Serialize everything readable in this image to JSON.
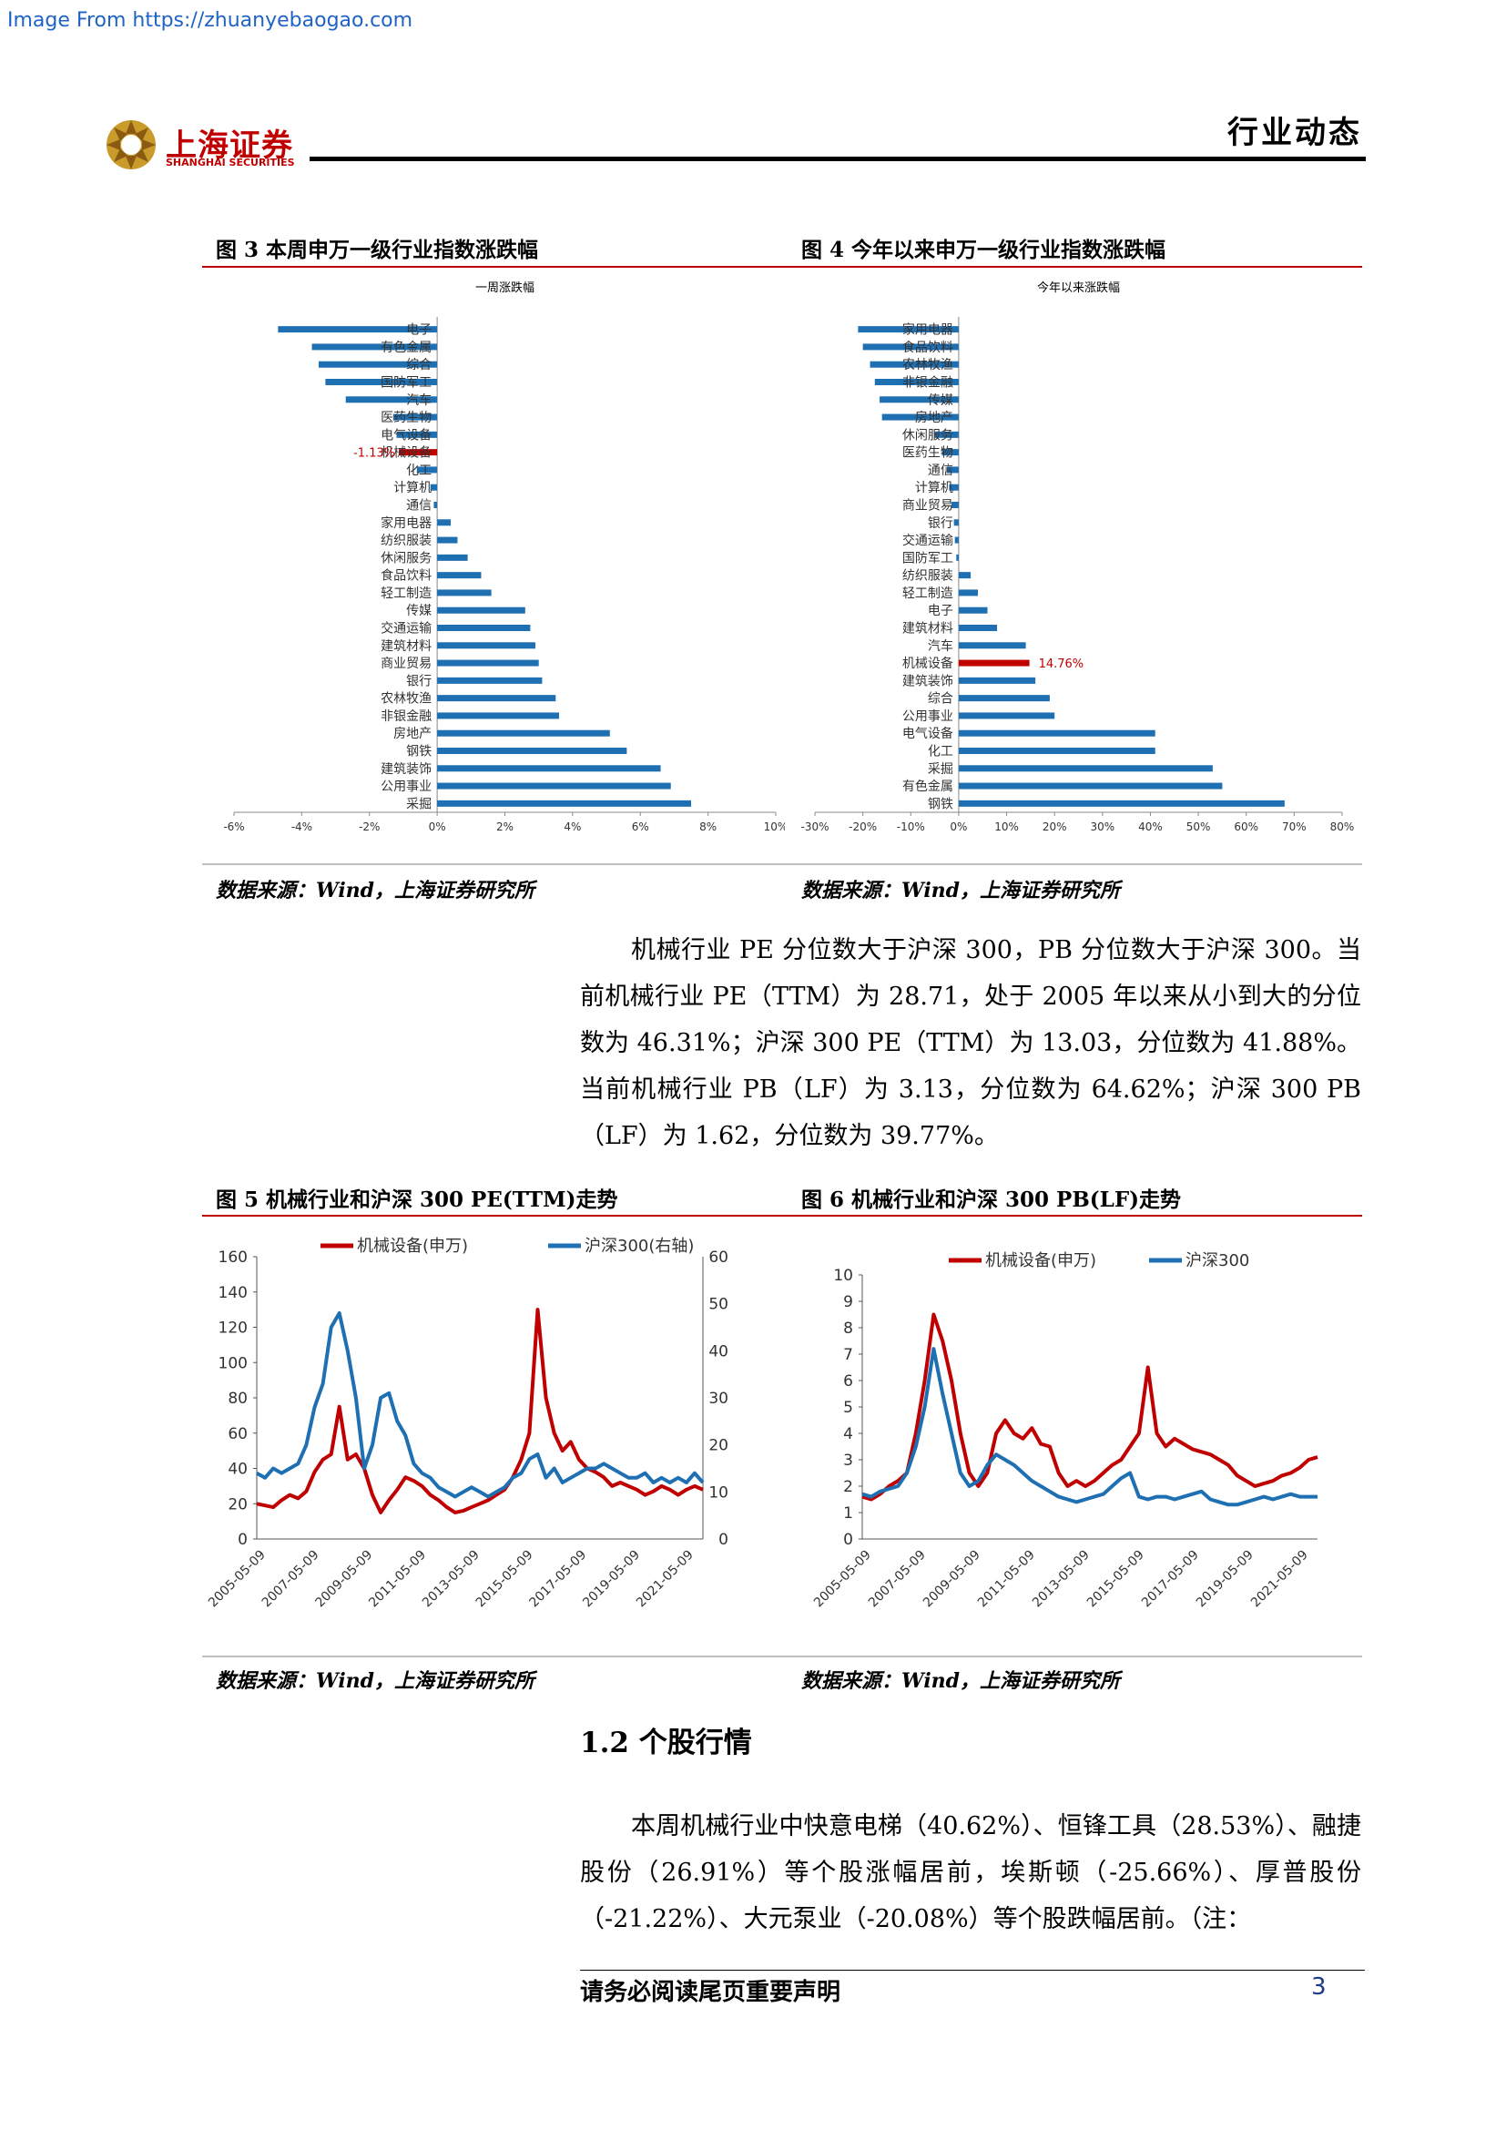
{
  "watermark": "Image From https://zhuanyebaogao.com",
  "header": {
    "logo_cn": "上海证券",
    "logo_en": "SHANGHAI SECURITIES",
    "doc_type": "行业动态",
    "colors": {
      "brand": "#c00000",
      "rule": "#000000"
    }
  },
  "fig3": {
    "title": "图 3 本周申万一级行业指数涨跌幅",
    "source": "数据来源：Wind，上海证券研究所"
  },
  "fig4": {
    "title": "图 4 今年以来申万一级行业指数涨跌幅",
    "source": "数据来源：Wind，上海证券研究所"
  },
  "fig5": {
    "title": "图 5 机械行业和沪深 300 PE(TTM)走势",
    "source": "数据来源：Wind，上海证券研究所"
  },
  "fig6": {
    "title": "图 6 机械行业和沪深 300 PB(LF)走势",
    "source": "数据来源：Wind，上海证券研究所"
  },
  "paragraph1": "机械行业 PE 分位数大于沪深 300，PB 分位数大于沪深 300。当前机械行业 PE（TTM）为 28.71，处于 2005 年以来从小到大的分位数为 46.31%；沪深 300 PE（TTM）为 13.03，分位数为 41.88%。当前机械行业 PB（LF）为 3.13，分位数为 64.62%；沪深 300 PB（LF）为 1.62，分位数为 39.77%。",
  "section_title": "1.2 个股行情",
  "paragraph2": "本周机械行业中快意电梯（40.62%）、恒锋工具（28.53%）、融捷股份（26.91%）等个股涨幅居前，埃斯顿（-25.66%）、厚普股份（-21.22%）、大元泵业（-20.08%）等个股跌幅居前。（注：",
  "footer": {
    "text": "请务必阅读尾页重要声明",
    "page": "3"
  },
  "chart_data": [
    {
      "type": "bar",
      "orientation": "horizontal",
      "title": "一周涨跌幅",
      "categories": [
        "电子",
        "有色金属",
        "综合",
        "国防军工",
        "汽车",
        "医药生物",
        "电气设备",
        "机械设备",
        "化工",
        "计算机",
        "通信",
        "家用电器",
        "纺织服装",
        "休闲服务",
        "食品饮料",
        "轻工制造",
        "传媒",
        "交通运输",
        "建筑材料",
        "商业贸易",
        "银行",
        "农林牧渔",
        "非银金融",
        "房地产",
        "钢铁",
        "建筑装饰",
        "公用事业",
        "采掘"
      ],
      "values": [
        -4.7,
        -3.7,
        -3.5,
        -3.3,
        -2.7,
        -1.3,
        -1.2,
        -1.13,
        -0.6,
        -0.2,
        -0.1,
        0.4,
        0.6,
        0.9,
        1.3,
        1.6,
        2.6,
        2.75,
        2.9,
        3.0,
        3.1,
        3.5,
        3.6,
        5.1,
        5.6,
        6.6,
        6.9,
        7.5
      ],
      "highlight": {
        "category": "机械设备",
        "label": "-1.13%",
        "color": "#c00000"
      },
      "bar_color": "#1f6fb3",
      "xlim": [
        -6,
        10
      ],
      "xticks": [
        "-6%",
        "-4%",
        "-2%",
        "0%",
        "2%",
        "4%",
        "6%",
        "8%",
        "10%"
      ]
    },
    {
      "type": "bar",
      "orientation": "horizontal",
      "title": "今年以来涨跌幅",
      "categories": [
        "家用电器",
        "食品饮料",
        "农林牧渔",
        "非银金融",
        "传媒",
        "房地产",
        "休闲服务",
        "医药生物",
        "通信",
        "计算机",
        "商业贸易",
        "银行",
        "交通运输",
        "国防军工",
        "纺织服装",
        "轻工制造",
        "电子",
        "建筑材料",
        "汽车",
        "机械设备",
        "建筑装饰",
        "综合",
        "公用事业",
        "电气设备",
        "化工",
        "采掘",
        "有色金属",
        "钢铁"
      ],
      "values": [
        -21,
        -20,
        -18.5,
        -17.5,
        -16.5,
        -16,
        -5,
        -3.5,
        -2.5,
        -2,
        -1.5,
        -1,
        -0.8,
        -0.5,
        2.5,
        4,
        6,
        8,
        14,
        14.76,
        16,
        19,
        20,
        41,
        41,
        53,
        55,
        68
      ],
      "highlight": {
        "category": "机械设备",
        "label": "14.76%",
        "color": "#c00000"
      },
      "bar_color": "#1f6fb3",
      "xlim": [
        -30,
        80
      ],
      "xticks": [
        "-30%",
        "-20%",
        "-10%",
        "0%",
        "10%",
        "20%",
        "30%",
        "40%",
        "50%",
        "60%",
        "70%",
        "80%"
      ]
    },
    {
      "type": "line",
      "legend": "top",
      "series": [
        {
          "name": "机械设备(申万)",
          "color": "#c00000",
          "axis": "left",
          "values": [
            20,
            19,
            18,
            22,
            25,
            23,
            27,
            38,
            45,
            48,
            75,
            45,
            48,
            40,
            25,
            15,
            22,
            28,
            35,
            33,
            30,
            25,
            22,
            18,
            15,
            16,
            18,
            20,
            22,
            25,
            28,
            35,
            45,
            60,
            130,
            80,
            60,
            50,
            55,
            45,
            40,
            38,
            35,
            30,
            32,
            30,
            28,
            25,
            27,
            30,
            28,
            25,
            28,
            30,
            28
          ]
        },
        {
          "name": "沪深300(右轴)",
          "color": "#1f6fb3",
          "axis": "right",
          "values": [
            14,
            13,
            15,
            14,
            15,
            16,
            20,
            28,
            33,
            45,
            48,
            40,
            30,
            15,
            20,
            30,
            31,
            25,
            22,
            16,
            14,
            13,
            11,
            10,
            9,
            10,
            11,
            10,
            9,
            10,
            11,
            13,
            14,
            17,
            18,
            13,
            15,
            12,
            13,
            14,
            15,
            15,
            16,
            15,
            14,
            13,
            13,
            14,
            12,
            13,
            12,
            13,
            12,
            14,
            12
          ]
        }
      ],
      "x_labels": [
        "2005-05-09",
        "2007-05-09",
        "2009-05-09",
        "2011-05-09",
        "2013-05-09",
        "2015-05-09",
        "2017-05-09",
        "2019-05-09",
        "2021-05-09"
      ],
      "ylim_left": [
        0,
        160
      ],
      "yticks_left": [
        "0",
        "20",
        "40",
        "60",
        "80",
        "100",
        "120",
        "140",
        "160"
      ],
      "ylim_right": [
        0,
        60
      ],
      "yticks_right": [
        "0",
        "10",
        "20",
        "30",
        "40",
        "50",
        "60"
      ]
    },
    {
      "type": "line",
      "legend": "top",
      "series": [
        {
          "name": "机械设备(申万)",
          "color": "#c00000",
          "values": [
            1.6,
            1.5,
            1.7,
            2.0,
            2.2,
            2.5,
            4,
            6,
            8.5,
            7.5,
            6,
            4,
            2.5,
            2.0,
            2.5,
            4,
            4.5,
            4,
            3.8,
            4.2,
            3.6,
            3.5,
            2.5,
            2.0,
            2.2,
            2.0,
            2.2,
            2.5,
            2.8,
            3.0,
            3.5,
            4.0,
            6.5,
            4.0,
            3.5,
            3.8,
            3.6,
            3.4,
            3.3,
            3.2,
            3.0,
            2.8,
            2.4,
            2.2,
            2.0,
            2.1,
            2.2,
            2.4,
            2.5,
            2.7,
            3.0,
            3.1
          ]
        },
        {
          "name": "沪深300",
          "color": "#1f6fb3",
          "values": [
            1.7,
            1.6,
            1.8,
            1.9,
            2.0,
            2.5,
            3.5,
            5.0,
            7.2,
            5.5,
            4.0,
            2.5,
            2.0,
            2.2,
            2.8,
            3.2,
            3.0,
            2.8,
            2.5,
            2.2,
            2.0,
            1.8,
            1.6,
            1.5,
            1.4,
            1.5,
            1.6,
            1.7,
            2.0,
            2.3,
            2.5,
            1.6,
            1.5,
            1.6,
            1.6,
            1.5,
            1.6,
            1.7,
            1.8,
            1.5,
            1.4,
            1.3,
            1.3,
            1.4,
            1.5,
            1.6,
            1.5,
            1.6,
            1.7,
            1.6,
            1.6,
            1.6
          ]
        }
      ],
      "x_labels": [
        "2005-05-09",
        "2007-05-09",
        "2009-05-09",
        "2011-05-09",
        "2013-05-09",
        "2015-05-09",
        "2017-05-09",
        "2019-05-09",
        "2021-05-09"
      ],
      "ylim": [
        0,
        10
      ],
      "yticks": [
        "0",
        "1",
        "2",
        "3",
        "4",
        "5",
        "6",
        "7",
        "8",
        "9",
        "10"
      ]
    }
  ]
}
